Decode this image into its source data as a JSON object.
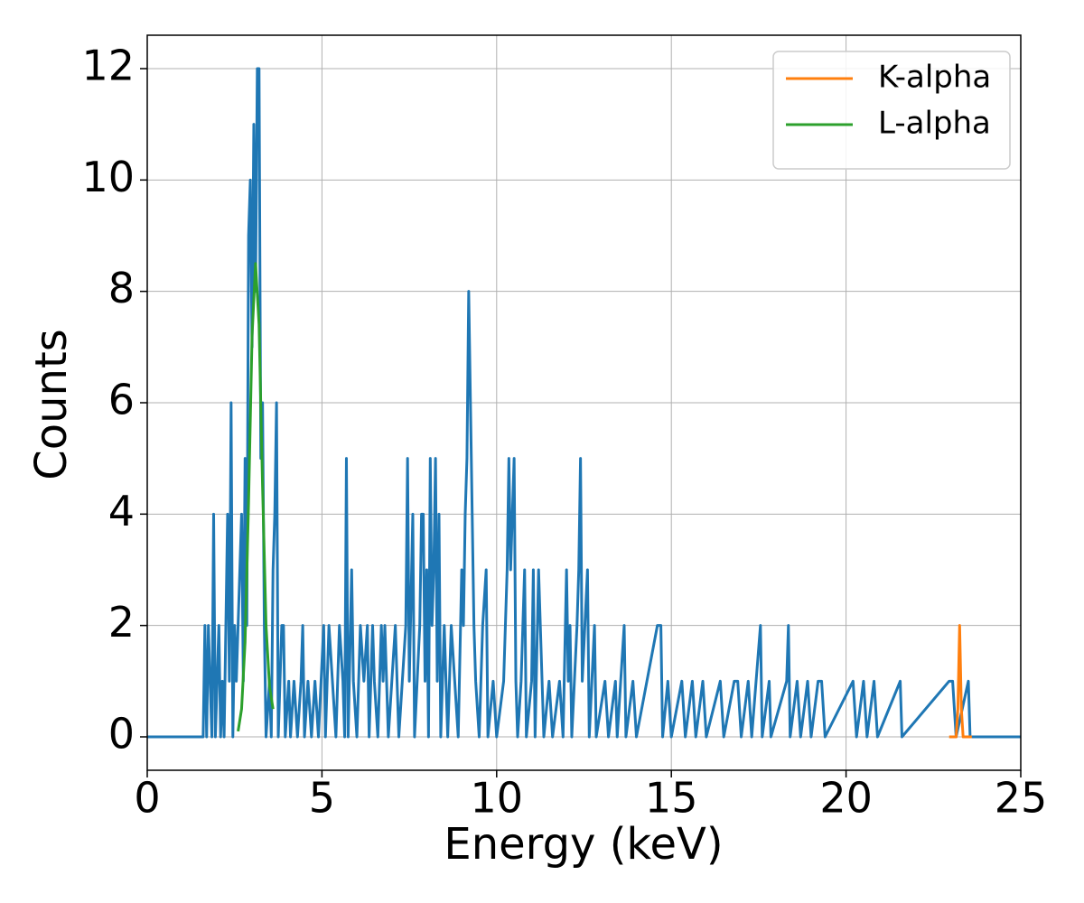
{
  "chart_data": {
    "type": "line",
    "xlabel": "Energy (keV)",
    "ylabel": "Counts",
    "xlim": [
      0,
      25
    ],
    "ylim": [
      -0.6,
      12.6
    ],
    "xticks": [
      0,
      5,
      10,
      15,
      20,
      25
    ],
    "yticks": [
      0,
      2,
      4,
      6,
      8,
      10,
      12
    ],
    "grid": true,
    "legend": "upper right",
    "series": [
      {
        "color": "#1f77b4",
        "x": [
          0,
          1.6,
          1.65,
          1.7,
          1.75,
          1.8,
          1.85,
          1.9,
          1.95,
          2.0,
          2.05,
          2.1,
          2.15,
          2.2,
          2.3,
          2.35,
          2.4,
          2.45,
          2.5,
          2.55,
          2.6,
          2.7,
          2.75,
          2.8,
          2.85,
          2.9,
          2.95,
          3.0,
          3.05,
          3.1,
          3.15,
          3.2,
          3.25,
          3.3,
          3.35,
          3.4,
          3.5,
          3.55,
          3.6,
          3.65,
          3.7,
          3.75,
          3.8,
          3.85,
          3.9,
          3.95,
          4.05,
          4.1,
          4.2,
          4.3,
          4.4,
          4.45,
          4.5,
          4.6,
          4.7,
          4.8,
          4.9,
          5.05,
          5.1,
          5.2,
          5.3,
          5.4,
          5.5,
          5.6,
          5.65,
          5.7,
          5.75,
          5.85,
          5.9,
          6.0,
          6.1,
          6.2,
          6.3,
          6.35,
          6.45,
          6.5,
          6.6,
          6.7,
          6.75,
          6.8,
          6.9,
          7.0,
          7.1,
          7.2,
          7.3,
          7.4,
          7.45,
          7.5,
          7.6,
          7.65,
          7.8,
          7.85,
          7.9,
          7.95,
          8.0,
          8.05,
          8.1,
          8.15,
          8.2,
          8.25,
          8.3,
          8.35,
          8.4,
          8.5,
          8.55,
          8.6,
          8.7,
          8.8,
          8.9,
          9.0,
          9.05,
          9.1,
          9.15,
          9.2,
          9.25,
          9.3,
          9.35,
          9.4,
          9.5,
          9.6,
          9.7,
          9.75,
          9.9,
          10.0,
          10.2,
          10.3,
          10.35,
          10.4,
          10.5,
          10.55,
          10.6,
          10.7,
          10.8,
          10.85,
          11.0,
          11.05,
          11.1,
          11.2,
          11.3,
          11.35,
          11.5,
          11.6,
          11.8,
          11.9,
          12.0,
          12.05,
          12.1,
          12.15,
          12.3,
          12.35,
          12.4,
          12.45,
          12.6,
          12.65,
          12.8,
          12.85,
          13.1,
          13.2,
          13.4,
          13.45,
          13.65,
          13.7,
          13.9,
          14.0,
          14.6,
          14.7,
          14.75,
          14.9,
          15.0,
          15.3,
          15.4,
          15.6,
          15.7,
          15.9,
          16.0,
          16.4,
          16.5,
          16.8,
          16.9,
          17.0,
          17.2,
          17.3,
          17.55,
          17.6,
          17.8,
          17.85,
          18.3,
          18.35,
          18.4,
          18.6,
          18.7,
          18.9,
          19.0,
          19.2,
          19.3,
          19.4,
          20.2,
          20.3,
          20.5,
          20.6,
          20.8,
          20.9,
          21.55,
          21.6,
          22.95,
          23.05,
          23.15,
          23.5,
          23.55,
          25
        ],
        "values": [
          0,
          0,
          2,
          0,
          2,
          1,
          0,
          4,
          0,
          1,
          2,
          0,
          1,
          0,
          4,
          1,
          6,
          0,
          2,
          1,
          2,
          4,
          1,
          5,
          2,
          9,
          10,
          7,
          11,
          8,
          12,
          12,
          5,
          6,
          2,
          0,
          1,
          0,
          3,
          4,
          6,
          0,
          1,
          2,
          2,
          0,
          1,
          0,
          1,
          0,
          1,
          2,
          0,
          1,
          0,
          1,
          0,
          2,
          0,
          2,
          1,
          0,
          2,
          1,
          0,
          5,
          0,
          3,
          1,
          0,
          2,
          1,
          2,
          0,
          2,
          1,
          0,
          2,
          1,
          2,
          0,
          1,
          2,
          0,
          1,
          2,
          5,
          1,
          4,
          0,
          2,
          4,
          4,
          1,
          3,
          0,
          5,
          2,
          3,
          5,
          1,
          4,
          0,
          2,
          1,
          0,
          2,
          1,
          0,
          3,
          2,
          4,
          5,
          8,
          6,
          4,
          2,
          1,
          0,
          2,
          3,
          0,
          1,
          0,
          1,
          3,
          5,
          3,
          5,
          1,
          0,
          1,
          3,
          0,
          1,
          3,
          0,
          3,
          1,
          0,
          1,
          0,
          1,
          0,
          3,
          1,
          2,
          0,
          2,
          3,
          5,
          1,
          3,
          0,
          2,
          0,
          1,
          0,
          1,
          0,
          2,
          0,
          1,
          0,
          2,
          2,
          0,
          1,
          0,
          1,
          0,
          1,
          0,
          1,
          0,
          1,
          0,
          1,
          1,
          0,
          1,
          0,
          2,
          0,
          1,
          0,
          1,
          2,
          0,
          1,
          0,
          1,
          0,
          1,
          1,
          0,
          1,
          0,
          1,
          0,
          1,
          0,
          1,
          0,
          1,
          1,
          0,
          1,
          0,
          0
        ]
      },
      {
        "name": "K-alpha",
        "color": "#ff7f0e",
        "x": [
          22.95,
          23.15,
          23.2,
          23.25,
          23.3,
          23.35,
          23.6
        ],
        "values": [
          0,
          0,
          0.5,
          2,
          0.5,
          0,
          0
        ]
      },
      {
        "name": "L-alpha",
        "color": "#2ca02c",
        "x": [
          2.6,
          2.7,
          2.8,
          2.9,
          3.0,
          3.1,
          3.2,
          3.3,
          3.4,
          3.5,
          3.6
        ],
        "values": [
          0.1,
          0.5,
          1.7,
          4.2,
          7.2,
          8.5,
          7.4,
          4.5,
          2.0,
          0.9,
          0.5
        ]
      }
    ]
  }
}
